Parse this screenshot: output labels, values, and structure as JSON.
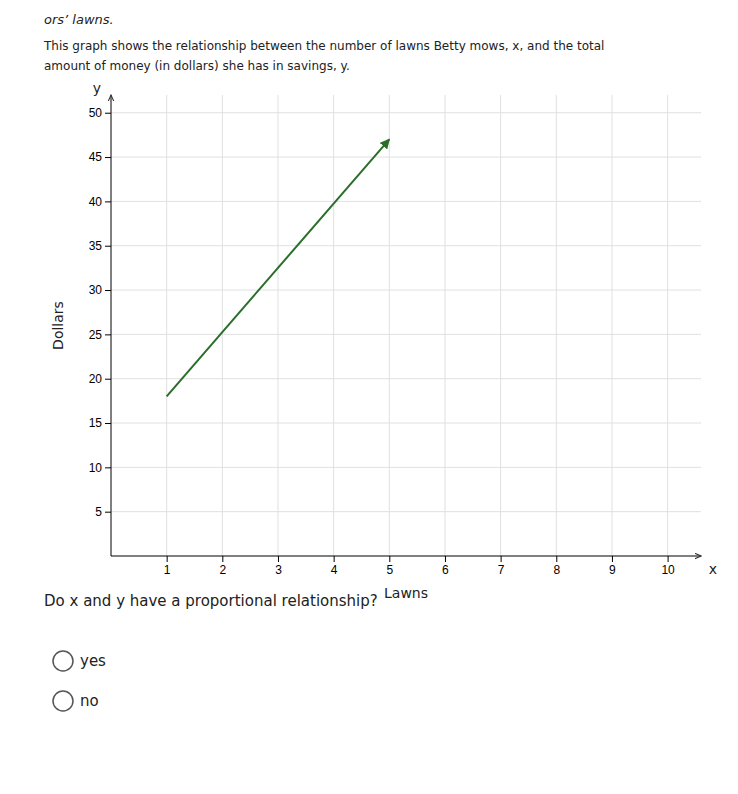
{
  "chart_data": {
    "type": "line",
    "title": "ors’ lawns.",
    "subtitle": [
      "This graph shows the relationship between the number of lawns Betty mows, x, and the total",
      "amount of money (in dollars) she has in savings, y."
    ],
    "x_label": "Lawns",
    "y_label": "Dollars",
    "x": [
      1,
      5
    ],
    "values": [
      18,
      47
    ],
    "color": "#2a6e2a",
    "xlim": [
      0,
      10.6
    ],
    "ylim": [
      0,
      52
    ],
    "xticks": [
      1,
      2,
      3,
      4,
      5,
      6,
      7,
      8,
      9,
      10
    ],
    "yticks": [
      5,
      10,
      15,
      20,
      25,
      30,
      35,
      40,
      45,
      50
    ],
    "grid": true,
    "annotations": [
      "x",
      "y",
      "Do x and y have a proportional relationship?",
      "yes",
      "no"
    ]
  }
}
